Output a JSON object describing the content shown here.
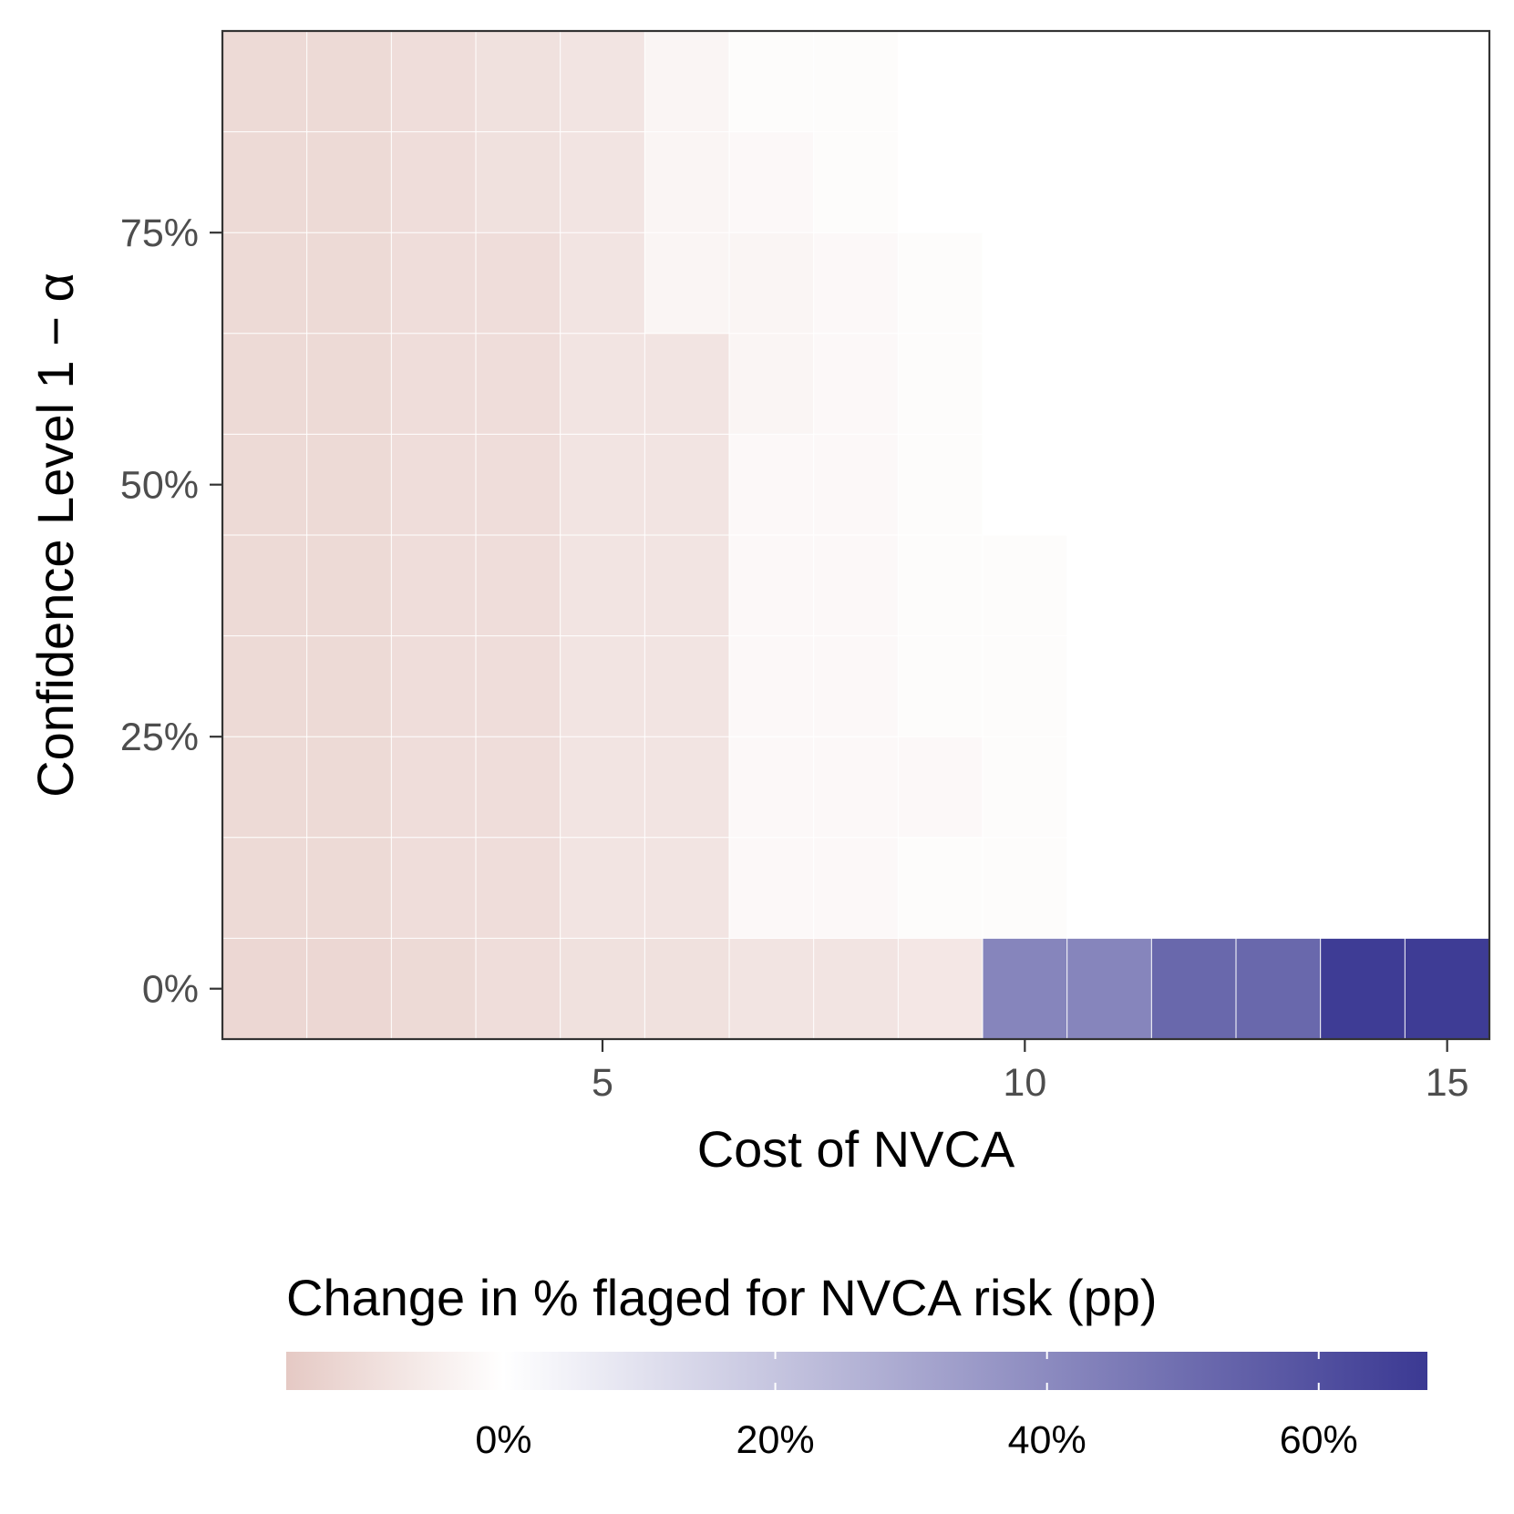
{
  "chart_data": {
    "type": "heatmap",
    "xlabel": "Cost of NVCA",
    "ylabel": "Confidence Level 1 − α",
    "x_values": [
      1,
      2,
      3,
      4,
      5,
      6,
      7,
      8,
      9,
      10,
      11,
      12,
      13,
      14,
      15
    ],
    "y_values": [
      0,
      0.1,
      0.2,
      0.3,
      0.4,
      0.5,
      0.6,
      0.7,
      0.8,
      0.9
    ],
    "xlim": [
      0.5,
      15.5
    ],
    "ylim": [
      -0.05,
      0.95
    ],
    "x_ticks": [
      5,
      10,
      15
    ],
    "x_tick_labels": [
      "5",
      "10",
      "15"
    ],
    "y_ticks": [
      0,
      0.25,
      0.5,
      0.75
    ],
    "y_tick_labels": [
      "0%",
      "25%",
      "50%",
      "75%"
    ],
    "values_pp": [
      [
        -12,
        -12,
        -11,
        -10,
        -9,
        -9,
        -8,
        -8,
        -7,
        42,
        42,
        52,
        52,
        67,
        67
      ],
      [
        -11,
        -11,
        -10,
        -10,
        -8,
        -8,
        -2,
        -2,
        -1,
        -1,
        0,
        0,
        0,
        0,
        0
      ],
      [
        -11,
        -11,
        -10,
        -10,
        -8,
        -8,
        -2,
        -2,
        -2,
        -1,
        0,
        0,
        0,
        0,
        0
      ],
      [
        -11,
        -11,
        -10,
        -10,
        -8,
        -8,
        -2,
        -2,
        -1,
        -1,
        0,
        0,
        0,
        0,
        0
      ],
      [
        -11,
        -11,
        -10,
        -10,
        -8,
        -8,
        -2,
        -2,
        -1,
        -1,
        0,
        0,
        0,
        0,
        0
      ],
      [
        -11,
        -11,
        -10,
        -10,
        -8,
        -8,
        -2,
        -2,
        -1,
        0,
        0,
        0,
        0,
        0,
        0
      ],
      [
        -11,
        -11,
        -10,
        -10,
        -8,
        -8,
        -3,
        -2,
        -1,
        0,
        0,
        0,
        0,
        0,
        0
      ],
      [
        -11,
        -11,
        -10,
        -10,
        -8,
        -3,
        -3,
        -2,
        -1,
        0,
        0,
        0,
        0,
        0,
        0
      ],
      [
        -11,
        -11,
        -10,
        -9,
        -8,
        -3,
        -2,
        -1,
        0,
        0,
        0,
        0,
        0,
        0,
        0
      ],
      [
        -11,
        -11,
        -10,
        -9,
        -8,
        -3,
        -1,
        -1,
        0,
        0,
        0,
        0,
        0,
        0,
        0
      ]
    ],
    "legend": {
      "title": "Change in % flaged for NVCA risk (pp)",
      "placement": "bottom",
      "min": -16,
      "max": 68,
      "breaks": [
        0,
        20,
        40,
        60
      ],
      "break_labels": [
        "0%",
        "20%",
        "40%",
        "60%"
      ],
      "low_color": "#e5c9c4",
      "mid_color": "#ffffff",
      "high_color": "#3b3993"
    },
    "grid": true
  }
}
